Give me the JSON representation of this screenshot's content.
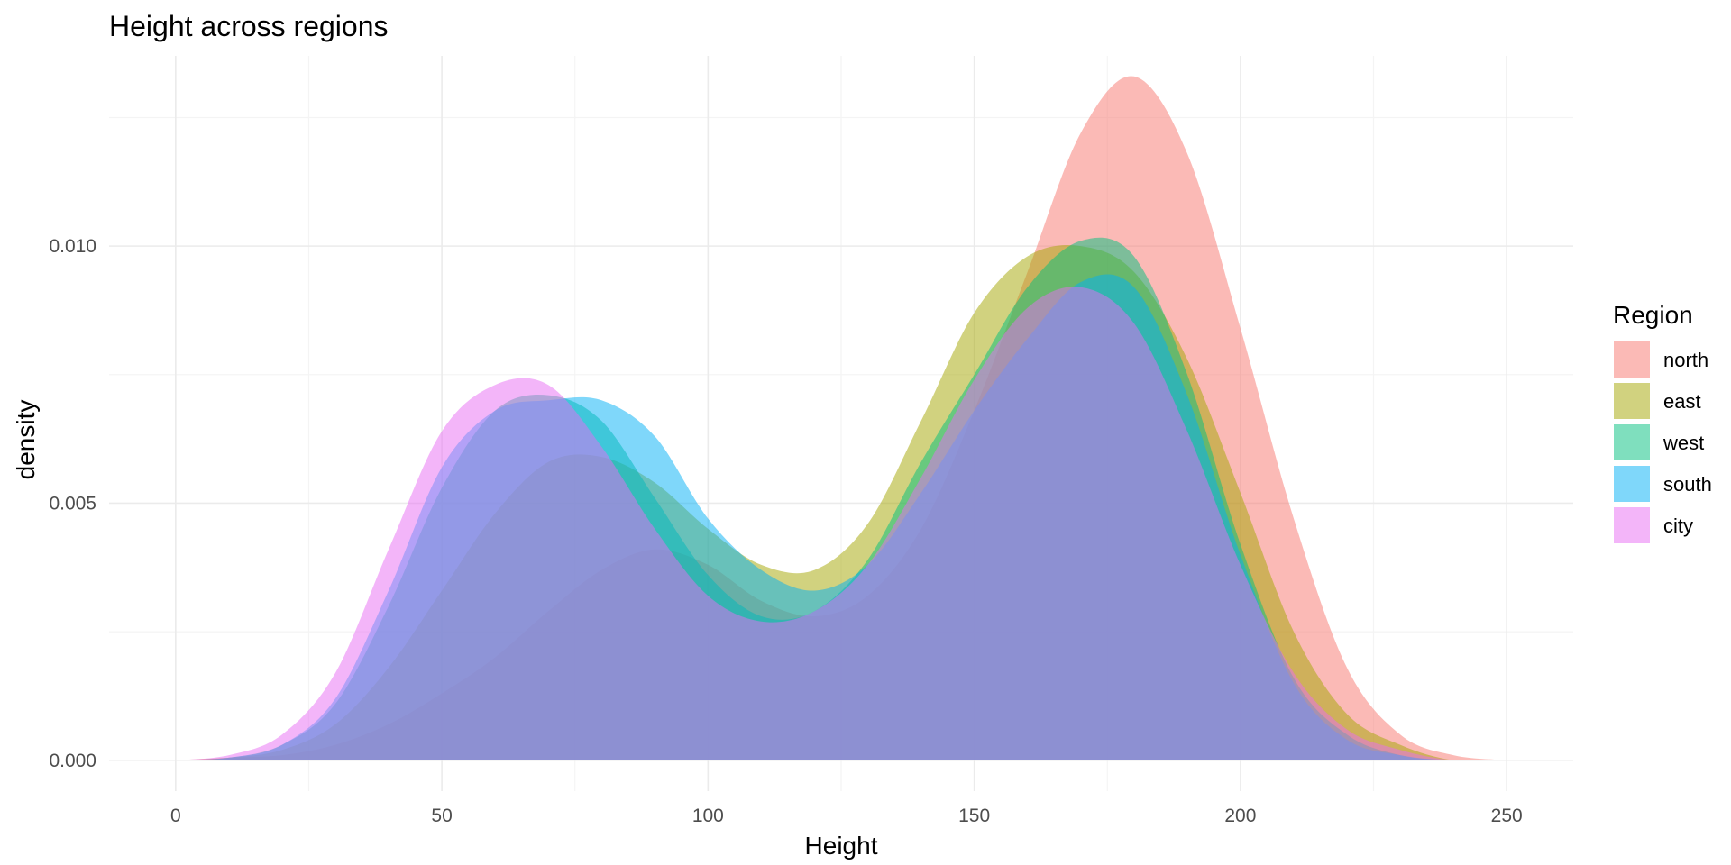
{
  "chart_data": {
    "type": "area",
    "title": "Height across regions",
    "xlabel": "Height",
    "ylabel": "density",
    "xlim": [
      -12.5,
      262.5
    ],
    "ylim": [
      -0.0006,
      0.0137
    ],
    "x_ticks": [
      0,
      50,
      100,
      150,
      200,
      250
    ],
    "x_tick_labels": [
      "0",
      "50",
      "100",
      "150",
      "200",
      "250"
    ],
    "y_ticks": [
      0.0,
      0.005,
      0.01
    ],
    "y_tick_labels": [
      "0.000",
      "0.005",
      "0.010"
    ],
    "grid": true,
    "legend": {
      "title": "Region",
      "position": "right"
    },
    "x": [
      0,
      10,
      20,
      30,
      40,
      50,
      60,
      70,
      80,
      90,
      100,
      110,
      120,
      130,
      140,
      150,
      160,
      170,
      180,
      190,
      200,
      210,
      220,
      230,
      240,
      250
    ],
    "series": [
      {
        "name": "north",
        "color": "#F8766D",
        "values": [
          0.0,
          5e-05,
          0.0001,
          0.0003,
          0.0007,
          0.0013,
          0.002,
          0.0029,
          0.0037,
          0.0041,
          0.0038,
          0.0031,
          0.0028,
          0.0032,
          0.0045,
          0.0068,
          0.0095,
          0.0122,
          0.0133,
          0.0118,
          0.0084,
          0.0047,
          0.0018,
          0.0005,
          0.0001,
          0.0
        ]
      },
      {
        "name": "east",
        "color": "#A3A500",
        "values": [
          0.0,
          5e-05,
          0.0002,
          0.0007,
          0.0018,
          0.0033,
          0.0048,
          0.0058,
          0.0059,
          0.0054,
          0.0045,
          0.0038,
          0.0037,
          0.0046,
          0.0066,
          0.0087,
          0.0098,
          0.01,
          0.0095,
          0.0078,
          0.0052,
          0.0025,
          0.0009,
          0.0003,
          0.0,
          0.0
        ]
      },
      {
        "name": "west",
        "color": "#00BF7D",
        "values": [
          0.0,
          5e-05,
          0.0003,
          0.0011,
          0.003,
          0.0053,
          0.0068,
          0.0071,
          0.0066,
          0.0051,
          0.0036,
          0.0028,
          0.0029,
          0.0039,
          0.0058,
          0.0075,
          0.0092,
          0.0101,
          0.0098,
          0.0075,
          0.0042,
          0.0016,
          0.0005,
          0.0001,
          0.0,
          0.0
        ]
      },
      {
        "name": "south",
        "color": "#00B0F6",
        "values": [
          0.0,
          5e-05,
          0.0003,
          0.0012,
          0.0033,
          0.0057,
          0.0068,
          0.007,
          0.007,
          0.0063,
          0.0047,
          0.0037,
          0.0033,
          0.0038,
          0.0052,
          0.0068,
          0.0082,
          0.0093,
          0.0092,
          0.0071,
          0.004,
          0.0015,
          0.0004,
          0.0001,
          0.0,
          0.0
        ]
      },
      {
        "name": "city",
        "color": "#E76BF3",
        "values": [
          0.0,
          0.0001,
          0.0005,
          0.0017,
          0.0041,
          0.0064,
          0.0073,
          0.0073,
          0.0061,
          0.0045,
          0.0032,
          0.0027,
          0.0029,
          0.0038,
          0.0055,
          0.0074,
          0.0088,
          0.0092,
          0.0085,
          0.0064,
          0.0038,
          0.0017,
          0.0006,
          0.0002,
          0.0,
          0.0
        ]
      }
    ]
  }
}
